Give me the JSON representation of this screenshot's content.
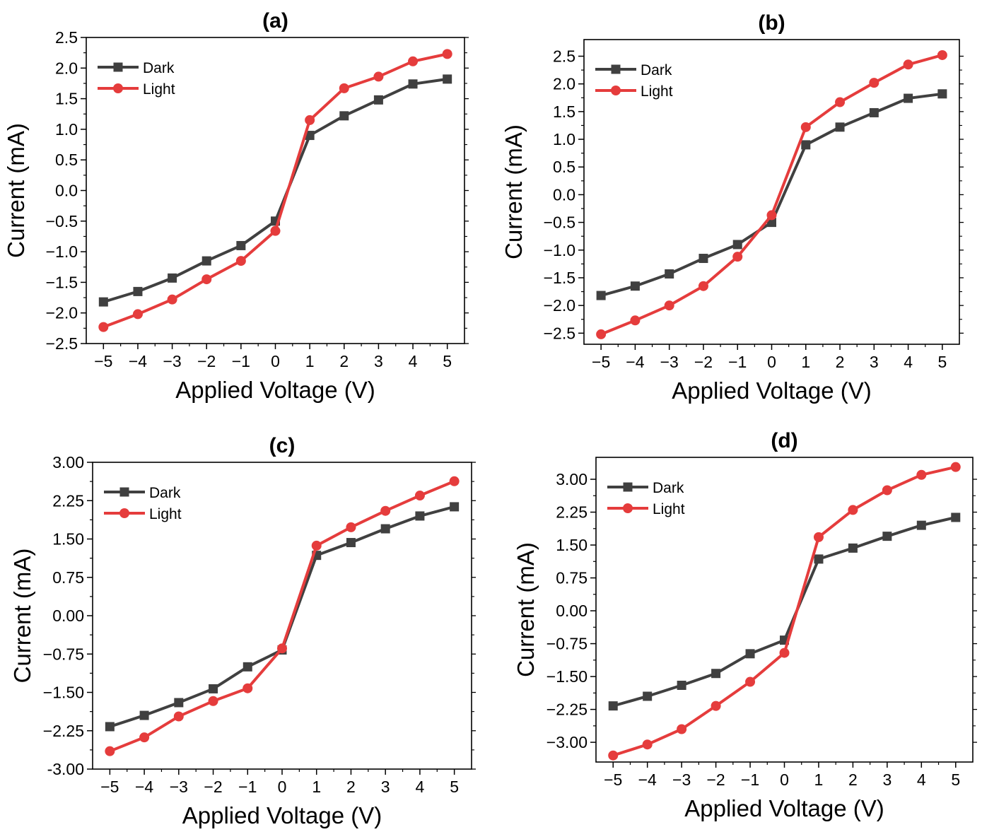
{
  "chart_data": [
    {
      "type": "line",
      "title": "(a)",
      "xlabel": "Applied Voltage (V)",
      "ylabel": "Current (mA)",
      "x": [
        -5,
        -4,
        -3,
        -2,
        -1,
        0,
        1,
        2,
        3,
        4,
        5
      ],
      "xlim": [
        -5.5,
        5.5
      ],
      "ylim": [
        -2.5,
        2.5
      ],
      "xticks": [
        "−5",
        "−4",
        "−3",
        "−2",
        "−1",
        "0",
        "1",
        "2",
        "3",
        "4",
        "5"
      ],
      "xtick_values": [
        -5,
        -4,
        -3,
        -2,
        -1,
        0,
        1,
        2,
        3,
        4,
        5
      ],
      "yticks": [
        "−2.5",
        "−2.0",
        "−1.5",
        "−1.0",
        "−0.5",
        "0.0",
        "0.5",
        "1.0",
        "1.5",
        "2.0",
        "2.5"
      ],
      "ytick_values": [
        -2.5,
        -2.0,
        -1.5,
        -1.0,
        -0.5,
        0.0,
        0.5,
        1.0,
        1.5,
        2.0,
        2.5
      ],
      "legend_position": "top-left",
      "grid": false,
      "series": [
        {
          "name": "Dark",
          "color": "#404040",
          "marker": "square",
          "values": [
            -1.82,
            -1.65,
            -1.43,
            -1.15,
            -0.9,
            -0.5,
            0.9,
            1.22,
            1.48,
            1.74,
            1.82
          ]
        },
        {
          "name": "Light",
          "color": "#e53c3c",
          "marker": "circle",
          "values": [
            -2.23,
            -2.02,
            -1.78,
            -1.45,
            -1.15,
            -0.66,
            1.15,
            1.67,
            1.86,
            2.11,
            2.23
          ]
        }
      ]
    },
    {
      "type": "line",
      "title": "(b)",
      "xlabel": "Applied Voltage (V)",
      "ylabel": "Current (mA)",
      "x": [
        -5,
        -4,
        -3,
        -2,
        -1,
        0,
        1,
        2,
        3,
        4,
        5
      ],
      "xlim": [
        -5.5,
        5.5
      ],
      "ylim": [
        -2.7,
        2.8
      ],
      "xticks": [
        "−5",
        "−4",
        "−3",
        "−2",
        "−1",
        "0",
        "1",
        "2",
        "3",
        "4",
        "5"
      ],
      "xtick_values": [
        -5,
        -4,
        -3,
        -2,
        -1,
        0,
        1,
        2,
        3,
        4,
        5
      ],
      "yticks": [
        "−2.5",
        "−2.0",
        "−1.5",
        "−1.0",
        "−0.5",
        "0.0",
        "0.5",
        "1.0",
        "1.5",
        "2.0",
        "2.5"
      ],
      "ytick_values": [
        -2.5,
        -2.0,
        -1.5,
        -1.0,
        -0.5,
        0.0,
        0.5,
        1.0,
        1.5,
        2.0,
        2.5
      ],
      "legend_position": "top-left",
      "grid": false,
      "series": [
        {
          "name": "Dark",
          "color": "#404040",
          "marker": "square",
          "values": [
            -1.82,
            -1.65,
            -1.43,
            -1.15,
            -0.9,
            -0.5,
            0.9,
            1.22,
            1.48,
            1.74,
            1.82
          ]
        },
        {
          "name": "Light",
          "color": "#e53c3c",
          "marker": "circle",
          "values": [
            -2.52,
            -2.27,
            -2.0,
            -1.65,
            -1.12,
            -0.37,
            1.22,
            1.67,
            2.02,
            2.35,
            2.52
          ]
        }
      ]
    },
    {
      "type": "line",
      "title": "(c)",
      "xlabel": "Applied Voltage (V)",
      "ylabel": "Current (mA)",
      "x": [
        -5,
        -4,
        -3,
        -2,
        -1,
        0,
        1,
        2,
        3,
        4,
        5
      ],
      "xlim": [
        -5.5,
        5.5
      ],
      "ylim": [
        -3.0,
        3.0
      ],
      "xticks": [
        "−5",
        "−4",
        "−3",
        "−2",
        "−1",
        "0",
        "1",
        "2",
        "3",
        "4",
        "5"
      ],
      "xtick_values": [
        -5,
        -4,
        -3,
        -2,
        -1,
        0,
        1,
        2,
        3,
        4,
        5
      ],
      "yticks": [
        "-3.00",
        "−2.25",
        "−1.50",
        "−0.75",
        "0.00",
        "0.75",
        "1.50",
        "2.25",
        "3.00"
      ],
      "ytick_values": [
        -3.0,
        -2.25,
        -1.5,
        -0.75,
        0.0,
        0.75,
        1.5,
        2.25,
        3.0
      ],
      "legend_position": "top-left",
      "grid": false,
      "series": [
        {
          "name": "Dark",
          "color": "#404040",
          "marker": "square",
          "values": [
            -2.17,
            -1.95,
            -1.7,
            -1.43,
            -1.0,
            -0.67,
            1.18,
            1.43,
            1.7,
            1.95,
            2.13
          ]
        },
        {
          "name": "Light",
          "color": "#e53c3c",
          "marker": "circle",
          "values": [
            -2.65,
            -2.38,
            -1.97,
            -1.67,
            -1.42,
            -0.64,
            1.37,
            1.73,
            2.05,
            2.35,
            2.63
          ]
        }
      ]
    },
    {
      "type": "line",
      "title": "(d)",
      "xlabel": "Applied Voltage (V)",
      "ylabel": "Current (mA)",
      "x": [
        -5,
        -4,
        -3,
        -2,
        -1,
        0,
        1,
        2,
        3,
        4,
        5
      ],
      "xlim": [
        -5.5,
        5.5
      ],
      "ylim": [
        -3.45,
        3.5
      ],
      "xticks": [
        "−5",
        "−4",
        "−3",
        "−2",
        "−1",
        "0",
        "1",
        "2",
        "3",
        "4",
        "5"
      ],
      "xtick_values": [
        -5,
        -4,
        -3,
        -2,
        -1,
        0,
        1,
        2,
        3,
        4,
        5
      ],
      "yticks": [
        "−3.00",
        "−2.25",
        "−1.50",
        "−0.75",
        "0.00",
        "0.75",
        "1.50",
        "2.25",
        "3.00"
      ],
      "ytick_values": [
        -3.0,
        -2.25,
        -1.5,
        -0.75,
        0.0,
        0.75,
        1.5,
        2.25,
        3.0
      ],
      "legend_position": "top-left",
      "grid": false,
      "series": [
        {
          "name": "Dark",
          "color": "#404040",
          "marker": "square",
          "values": [
            -2.17,
            -1.95,
            -1.7,
            -1.43,
            -0.98,
            -0.67,
            1.18,
            1.43,
            1.7,
            1.95,
            2.13
          ]
        },
        {
          "name": "Light",
          "color": "#e53c3c",
          "marker": "circle",
          "values": [
            -3.3,
            -3.05,
            -2.7,
            -2.17,
            -1.62,
            -0.96,
            1.68,
            2.3,
            2.75,
            3.1,
            3.28
          ]
        }
      ]
    }
  ]
}
